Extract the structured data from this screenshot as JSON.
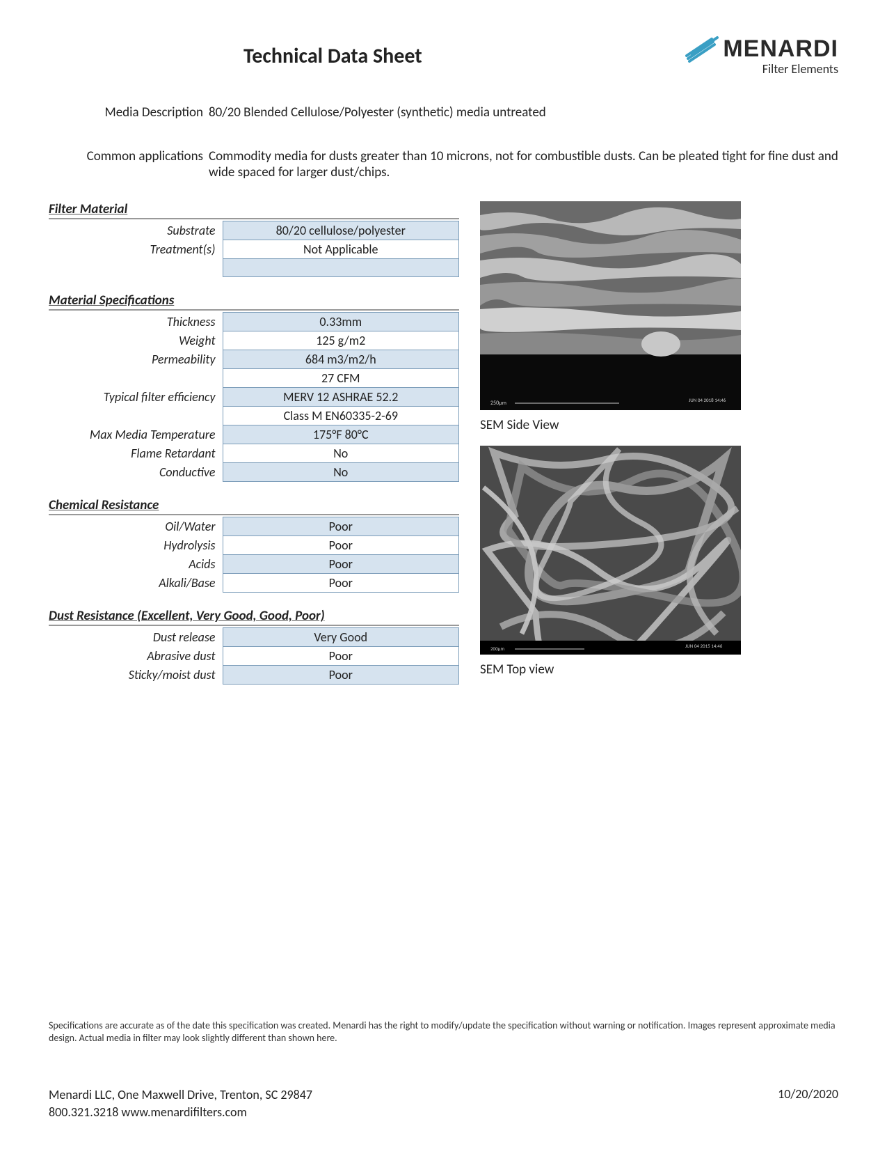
{
  "header": {
    "title": "Technical Data Sheet",
    "logo_text": "MENARDI",
    "logo_sub": "Filter Elements",
    "swoosh_color": "#3a9fc4"
  },
  "intro": {
    "media_desc_label": "Media Description",
    "media_desc": "80/20 Blended Cellulose/Polyester (synthetic) media untreated",
    "apps_label": "Common applications",
    "apps": "Commodity media for dusts greater than 10 microns, not for combustible dusts.  Can be pleated tight for fine dust and wide spaced for larger dust/chips."
  },
  "sections": {
    "filter_material": {
      "title": "Filter Material",
      "rows": [
        {
          "label": "Substrate",
          "value": "80/20 cellulose/polyester",
          "shaded": true
        },
        {
          "label": "Treatment(s)",
          "value": "Not Applicable",
          "shaded": false
        },
        {
          "label": "",
          "value": "",
          "shaded": true
        }
      ]
    },
    "material_specs": {
      "title": "Material Specifications",
      "rows": [
        {
          "label": "Thickness",
          "value": "0.33mm",
          "shaded": true
        },
        {
          "label": "Weight",
          "value": "125 g/m2",
          "shaded": false
        },
        {
          "label": "Permeability",
          "value": "684 m3/m2/h",
          "shaded": true
        },
        {
          "label": "",
          "value": "27 CFM",
          "shaded": false
        },
        {
          "label": "Typical filter efficiency",
          "value": "MERV 12  ASHRAE 52.2",
          "shaded": true
        },
        {
          "label": "",
          "value": "Class M  EN60335-2-69",
          "shaded": false
        },
        {
          "label": "Max Media Temperature",
          "value": "175°F  80°C",
          "shaded": true
        },
        {
          "label": "Flame Retardant",
          "value": "No",
          "shaded": false
        },
        {
          "label": "Conductive",
          "value": "No",
          "shaded": true
        }
      ]
    },
    "chemical_resistance": {
      "title": "Chemical Resistance",
      "rows": [
        {
          "label": "Oil/Water",
          "value": "Poor",
          "shaded": true
        },
        {
          "label": "Hydrolysis",
          "value": "Poor",
          "shaded": false
        },
        {
          "label": "Acids",
          "value": "Poor",
          "shaded": true
        },
        {
          "label": "Alkali/Base",
          "value": "Poor",
          "shaded": false
        }
      ]
    },
    "dust_resistance": {
      "title": "Dust Resistance (Excellent, Very Good, Good, Poor)",
      "rows": [
        {
          "label": "Dust release",
          "value": "Very Good",
          "shaded": true
        },
        {
          "label": "Abrasive dust",
          "value": "Poor",
          "shaded": false
        },
        {
          "label": "Sticky/moist dust",
          "value": "Poor",
          "shaded": true
        }
      ]
    }
  },
  "images": {
    "side_caption": "SEM Side View",
    "top_caption": "SEM Top view"
  },
  "disclaimer": "Specifications are accurate as of the date this specification was created.  Menardi has the right to modify/update the specification without warning or notification.  Images represent approximate media design.  Actual media in filter may look slightly different than shown here.",
  "footer": {
    "address": "Menardi LLC, One Maxwell Drive, Trenton, SC 29847",
    "phone_web": "800.321.3218     www.menardifilters.com",
    "date": "10/20/2020"
  },
  "colors": {
    "row_shaded": "#d6e3ef",
    "row_border": "#7a9bb8",
    "section_underline": "#999999"
  }
}
